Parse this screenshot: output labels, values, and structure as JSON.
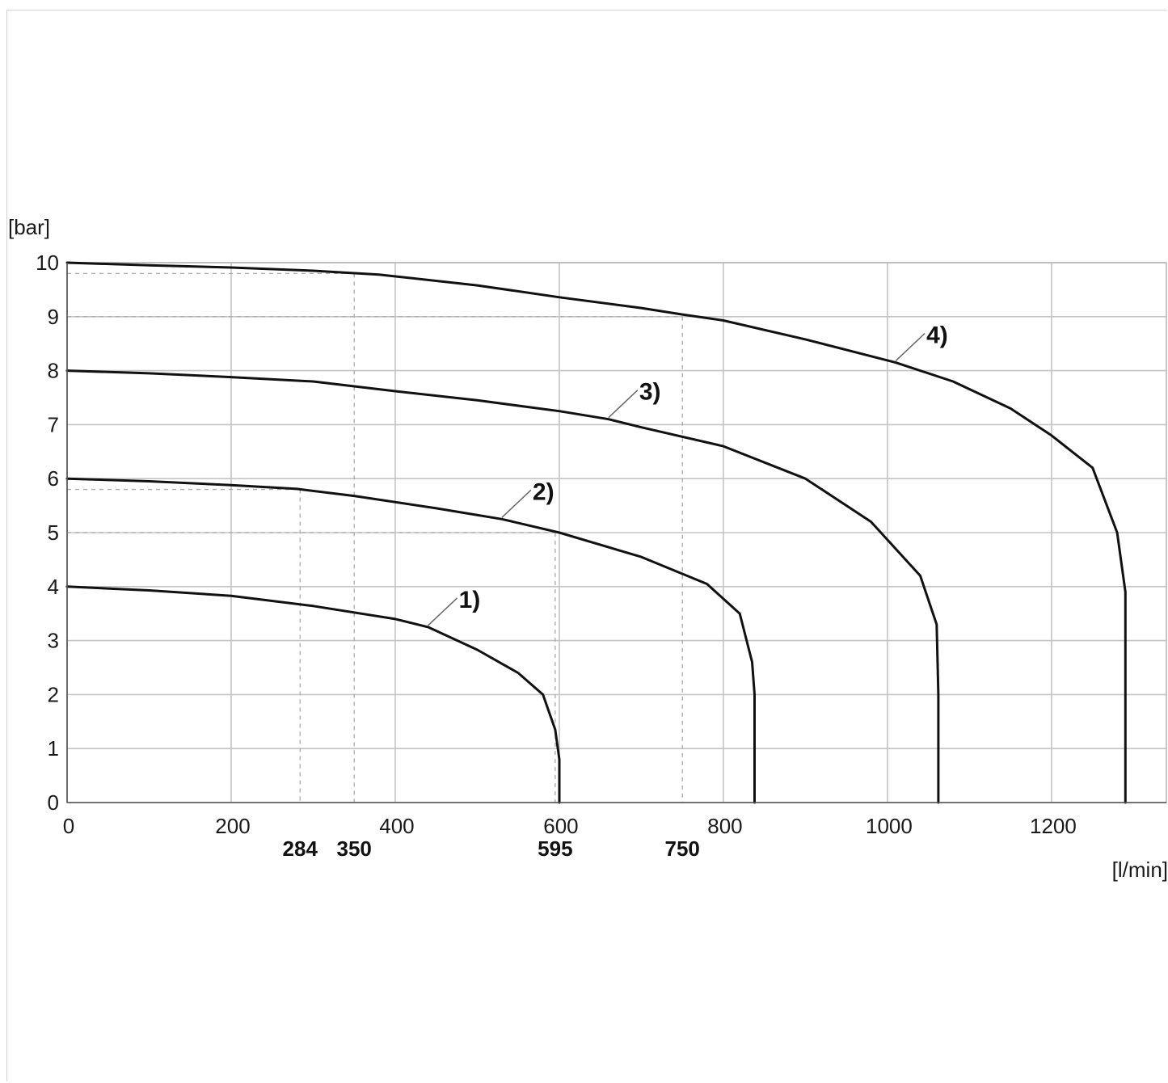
{
  "chart_data": {
    "type": "line",
    "xlabel": "[l/min]",
    "ylabel": "[bar]",
    "xlim": [
      0,
      1340
    ],
    "ylim": [
      0,
      10
    ],
    "x_ticks": [
      "0",
      "200",
      "400",
      "600",
      "800",
      "1000",
      "1200"
    ],
    "x_tick_values": [
      0,
      200,
      400,
      600,
      800,
      1000,
      1200
    ],
    "y_ticks": [
      "0",
      "1",
      "2",
      "3",
      "4",
      "5",
      "6",
      "7",
      "8",
      "9",
      "10"
    ],
    "y_tick_values": [
      0,
      1,
      2,
      3,
      4,
      5,
      6,
      7,
      8,
      9,
      10
    ],
    "grid": true,
    "marked_x_values": [
      "284",
      "350",
      "595",
      "750"
    ],
    "reference_lines": [
      {
        "x": 284,
        "y": 5.8
      },
      {
        "x": 350,
        "y": 9.8
      },
      {
        "x": 595,
        "y": 5.0
      },
      {
        "x": 750,
        "y": 9.0
      }
    ],
    "series": [
      {
        "name": "1)",
        "label_at": {
          "x": 440,
          "y": 3.25
        },
        "points": [
          [
            0,
            4.0
          ],
          [
            100,
            3.93
          ],
          [
            200,
            3.83
          ],
          [
            300,
            3.64
          ],
          [
            400,
            3.4
          ],
          [
            440,
            3.25
          ],
          [
            500,
            2.83
          ],
          [
            550,
            2.4
          ],
          [
            580,
            2.0
          ],
          [
            595,
            1.35
          ],
          [
            600,
            0.8
          ],
          [
            600,
            0
          ]
        ]
      },
      {
        "name": "2)",
        "label_at": {
          "x": 530,
          "y": 5.25
        },
        "points": [
          [
            0,
            6.0
          ],
          [
            100,
            5.95
          ],
          [
            200,
            5.88
          ],
          [
            280,
            5.81
          ],
          [
            350,
            5.68
          ],
          [
            450,
            5.45
          ],
          [
            530,
            5.25
          ],
          [
            600,
            5.0
          ],
          [
            700,
            4.55
          ],
          [
            780,
            4.05
          ],
          [
            820,
            3.5
          ],
          [
            835,
            2.6
          ],
          [
            838,
            2.0
          ],
          [
            838,
            0
          ]
        ]
      },
      {
        "name": "3)",
        "label_at": {
          "x": 660,
          "y": 7.1
        },
        "points": [
          [
            0,
            8.0
          ],
          [
            100,
            7.95
          ],
          [
            200,
            7.88
          ],
          [
            300,
            7.8
          ],
          [
            400,
            7.62
          ],
          [
            500,
            7.45
          ],
          [
            600,
            7.25
          ],
          [
            660,
            7.1
          ],
          [
            700,
            6.95
          ],
          [
            800,
            6.6
          ],
          [
            900,
            6.0
          ],
          [
            980,
            5.2
          ],
          [
            1040,
            4.2
          ],
          [
            1060,
            3.3
          ],
          [
            1062,
            2.0
          ],
          [
            1062,
            0
          ]
        ]
      },
      {
        "name": "4)",
        "label_at": {
          "x": 1010,
          "y": 8.15
        },
        "points": [
          [
            0,
            10.0
          ],
          [
            100,
            9.95
          ],
          [
            200,
            9.91
          ],
          [
            300,
            9.85
          ],
          [
            380,
            9.78
          ],
          [
            500,
            9.58
          ],
          [
            600,
            9.36
          ],
          [
            700,
            9.16
          ],
          [
            750,
            9.04
          ],
          [
            800,
            8.93
          ],
          [
            900,
            8.58
          ],
          [
            1010,
            8.15
          ],
          [
            1080,
            7.8
          ],
          [
            1150,
            7.3
          ],
          [
            1200,
            6.8
          ],
          [
            1250,
            6.2
          ],
          [
            1280,
            5.0
          ],
          [
            1290,
            3.9
          ],
          [
            1290,
            0
          ]
        ]
      }
    ]
  }
}
